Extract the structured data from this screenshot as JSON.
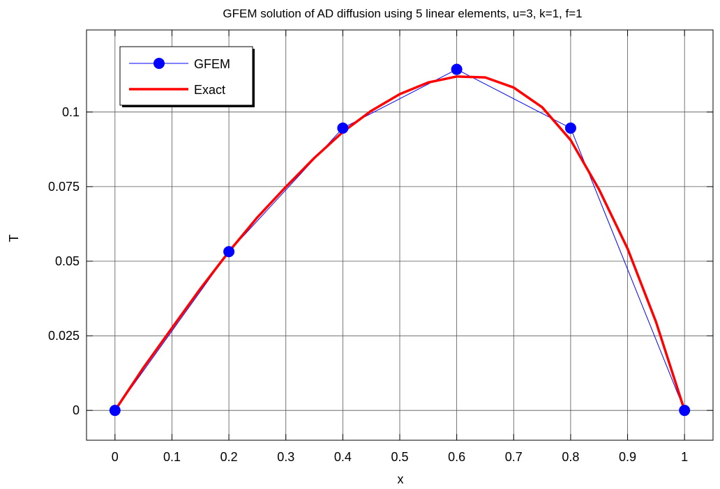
{
  "chart_data": {
    "type": "line",
    "title": "GFEM solution of AD diffusion using 5 linear elements, u=3, k=1, f=1",
    "xlabel": "x",
    "ylabel": "T",
    "xlim": [
      -0.05,
      1.05
    ],
    "ylim": [
      -0.01,
      0.1275
    ],
    "xticks": [
      0,
      0.1,
      0.2,
      0.3,
      0.4,
      0.5,
      0.6,
      0.7,
      0.8,
      0.9,
      1
    ],
    "xtick_labels": [
      "0",
      "0.1",
      "0.2",
      "0.3",
      "0.4",
      "0.5",
      "0.6",
      "0.7",
      "0.8",
      "0.9",
      "1"
    ],
    "yticks": [
      0,
      0.025,
      0.05,
      0.075,
      0.1
    ],
    "ytick_labels": [
      "0",
      "0.025",
      "0.05",
      "0.075",
      "0.1"
    ],
    "grid": true,
    "legend_position": "top-left",
    "series": [
      {
        "name": "GFEM",
        "style": "line-with-markers",
        "color": "#0000ff",
        "x": [
          0,
          0.2,
          0.4,
          0.6,
          0.8,
          1.0
        ],
        "y": [
          0,
          0.0532,
          0.0946,
          0.1143,
          0.0946,
          0
        ]
      },
      {
        "name": "Exact",
        "style": "thick-line",
        "color": "#ff0000",
        "x": [
          0,
          0.05,
          0.1,
          0.15,
          0.2,
          0.25,
          0.3,
          0.35,
          0.4,
          0.45,
          0.5,
          0.55,
          0.6,
          0.65,
          0.7,
          0.75,
          0.8,
          0.85,
          0.9,
          0.95,
          1.0
        ],
        "y": [
          0,
          0.0143,
          0.0276,
          0.0408,
          0.0532,
          0.0647,
          0.0749,
          0.0846,
          0.0933,
          0.1004,
          0.106,
          0.1099,
          0.1119,
          0.1116,
          0.1082,
          0.1016,
          0.0906,
          0.074,
          0.0542,
          0.0296,
          0
        ]
      }
    ]
  }
}
